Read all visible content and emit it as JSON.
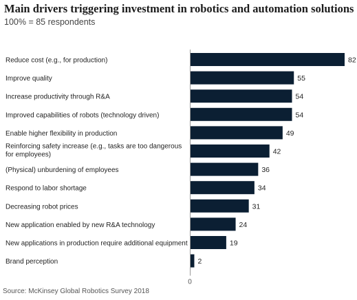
{
  "title": "Main drivers triggering investment in robotics and automation solutions",
  "subtitle": "100% = 85 respondents",
  "source": "Source: McKinsey Global Robotics Survey 2018",
  "colors": {
    "bar": "#0b1f33",
    "axis": "#9a9a9a",
    "text": "#1f1f1f"
  },
  "chart_data": {
    "type": "bar",
    "orientation": "horizontal",
    "categories": [
      [
        "Reduce cost (e.g., for production)"
      ],
      [
        "Improve quality"
      ],
      [
        "Increase productivity through R&A"
      ],
      [
        "Improved capabilities of robots (technology driven)"
      ],
      [
        "Enable higher flexibility in production"
      ],
      [
        "Reinforcing safety increase (e.g., tasks are too dangerous",
        "for employees)"
      ],
      [
        "(Physical) unburdening of employees"
      ],
      [
        "Respond to labor shortage"
      ],
      [
        "Decreasing robot prices"
      ],
      [
        "New application enabled by new R&A technology"
      ],
      [
        "New applications in production require additional equipment"
      ],
      [
        "Brand perception"
      ]
    ],
    "values": [
      82,
      55,
      54,
      54,
      49,
      42,
      36,
      34,
      31,
      24,
      19,
      2
    ],
    "xtick_labels": [
      "0"
    ],
    "xlim": [
      0,
      82
    ],
    "grid": false
  }
}
